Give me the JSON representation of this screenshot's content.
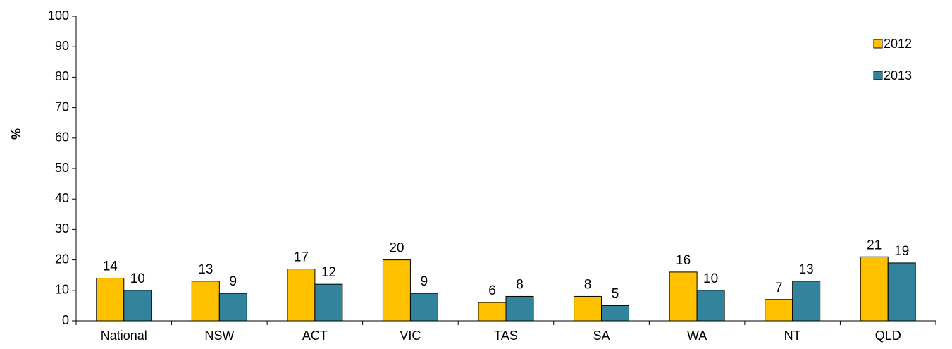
{
  "chart_data": {
    "type": "bar",
    "ylabel": "%",
    "xlabel": "",
    "ylim": [
      0,
      100
    ],
    "yticks": [
      0,
      10,
      20,
      30,
      40,
      50,
      60,
      70,
      80,
      90,
      100
    ],
    "categories": [
      "National",
      "NSW",
      "ACT",
      "VIC",
      "TAS",
      "SA",
      "WA",
      "NT",
      "QLD"
    ],
    "series": [
      {
        "name": "2012",
        "values": [
          14,
          13,
          17,
          20,
          6,
          8,
          16,
          7,
          21
        ],
        "color": "#FFC000"
      },
      {
        "name": "2013",
        "values": [
          10,
          9,
          12,
          9,
          8,
          5,
          10,
          13,
          19
        ],
        "color": "#31849B"
      }
    ],
    "data_labels": true,
    "legend_position": "top-right",
    "grid": false
  }
}
